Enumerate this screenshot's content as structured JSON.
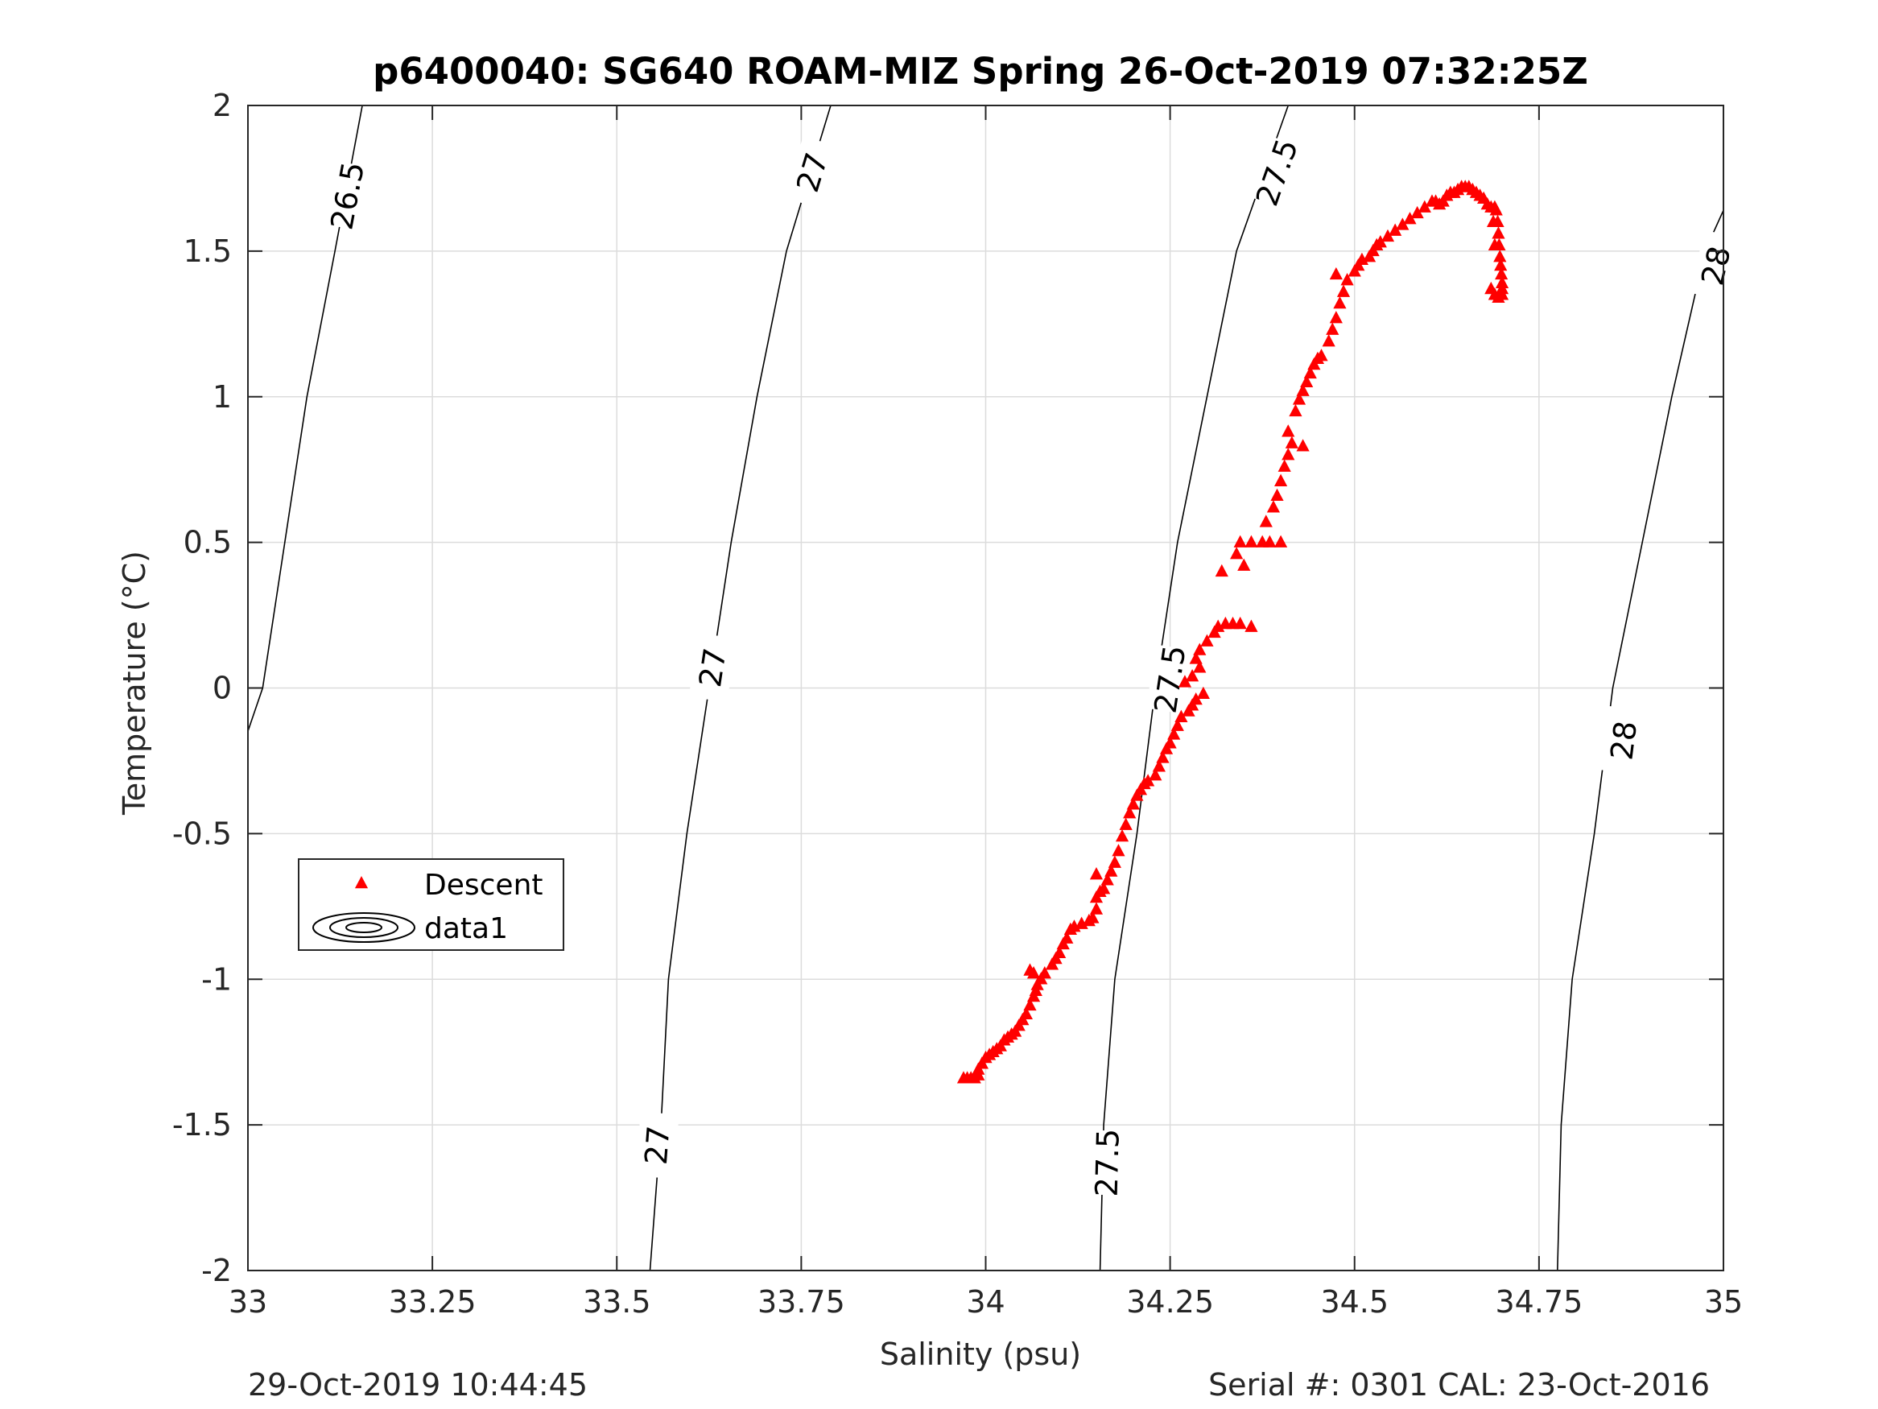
{
  "footer": {
    "timestamp": "29-Oct-2019 10:44:45",
    "serial_cal": "Serial #: 0301  CAL: 23-Oct-2016"
  },
  "chart_data": {
    "type": "scatter",
    "title": "p6400040: SG640 ROAM-MIZ Spring 26-Oct-2019 07:32:25Z",
    "xlabel": "Salinity (psu)",
    "ylabel": "Temperature (°C)",
    "xlim": [
      33,
      35
    ],
    "ylim": [
      -2,
      2
    ],
    "xticks": [
      33,
      33.25,
      33.5,
      33.75,
      34,
      34.25,
      34.5,
      34.75,
      35
    ],
    "xtick_labels": [
      "33",
      "33.25",
      "33.5",
      "33.75",
      "34",
      "34.25",
      "34.5",
      "34.75",
      "35"
    ],
    "yticks": [
      -2,
      -1.5,
      -1,
      -0.5,
      0,
      0.5,
      1,
      1.5,
      2
    ],
    "ytick_labels": [
      "-2",
      "-1.5",
      "-1",
      "-0.5",
      "0",
      "0.5",
      "1",
      "1.5",
      "2"
    ],
    "grid": true,
    "legend": {
      "placement": "lower-left",
      "entries": [
        {
          "label": "Descent",
          "marker": "triangle",
          "color": "#ff0000"
        },
        {
          "label": "data1",
          "marker": "contour",
          "color": "#000000"
        }
      ]
    },
    "contours": [
      {
        "label": "26.5",
        "points": [
          [
            32.997,
            -0.17
          ],
          [
            33.02,
            0.0
          ],
          [
            33.05,
            0.5
          ],
          [
            33.08,
            1.0
          ],
          [
            33.118,
            1.5
          ],
          [
            33.155,
            2.0
          ]
        ],
        "label_positions": [
          [
            33.135,
            1.69
          ]
        ]
      },
      {
        "label": "27",
        "points": [
          [
            33.545,
            -2.0
          ],
          [
            33.56,
            -1.5
          ],
          [
            33.57,
            -1.0
          ],
          [
            33.595,
            -0.5
          ],
          [
            33.625,
            0.0
          ],
          [
            33.655,
            0.5
          ],
          [
            33.69,
            1.0
          ],
          [
            33.73,
            1.5
          ],
          [
            33.79,
            2.0
          ]
        ],
        "label_positions": [
          [
            33.555,
            -1.57
          ],
          [
            33.63,
            0.07
          ],
          [
            33.765,
            1.77
          ]
        ]
      },
      {
        "label": "27.5",
        "points": [
          [
            34.155,
            -2.0
          ],
          [
            34.16,
            -1.5
          ],
          [
            34.175,
            -1.0
          ],
          [
            34.205,
            -0.5
          ],
          [
            34.23,
            0.0
          ],
          [
            34.26,
            0.5
          ],
          [
            34.3,
            1.0
          ],
          [
            34.34,
            1.5
          ],
          [
            34.41,
            2.0
          ]
        ],
        "label_positions": [
          [
            34.165,
            -1.63
          ],
          [
            34.25,
            0.03
          ],
          [
            34.395,
            1.77
          ]
        ]
      },
      {
        "label": "28",
        "points": [
          [
            34.775,
            -2.0
          ],
          [
            34.78,
            -1.5
          ],
          [
            34.795,
            -1.0
          ],
          [
            34.825,
            -0.5
          ],
          [
            34.85,
            0.0
          ],
          [
            34.89,
            0.5
          ],
          [
            34.93,
            1.0
          ],
          [
            34.975,
            1.5
          ],
          [
            35.0,
            1.64
          ]
        ],
        "label_positions": [
          [
            34.865,
            -0.18
          ],
          [
            34.99,
            1.45
          ]
        ]
      }
    ],
    "series": [
      {
        "name": "Descent",
        "marker": "triangle",
        "color": "#ff0000",
        "points": [
          [
            33.97,
            -1.34
          ],
          [
            33.975,
            -1.34
          ],
          [
            33.98,
            -1.34
          ],
          [
            33.985,
            -1.34
          ],
          [
            33.99,
            -1.33
          ],
          [
            33.99,
            -1.31
          ],
          [
            33.995,
            -1.29
          ],
          [
            34.0,
            -1.27
          ],
          [
            34.005,
            -1.26
          ],
          [
            34.01,
            -1.25
          ],
          [
            34.015,
            -1.24
          ],
          [
            34.02,
            -1.23
          ],
          [
            34.025,
            -1.21
          ],
          [
            34.03,
            -1.2
          ],
          [
            34.035,
            -1.19
          ],
          [
            34.04,
            -1.18
          ],
          [
            34.045,
            -1.16
          ],
          [
            34.05,
            -1.14
          ],
          [
            34.055,
            -1.12
          ],
          [
            34.06,
            -1.09
          ],
          [
            34.065,
            -1.06
          ],
          [
            34.068,
            -1.04
          ],
          [
            34.07,
            -1.02
          ],
          [
            34.075,
            -1.0
          ],
          [
            34.065,
            -0.98
          ],
          [
            34.06,
            -0.97
          ],
          [
            34.08,
            -0.98
          ],
          [
            34.09,
            -0.95
          ],
          [
            34.095,
            -0.93
          ],
          [
            34.1,
            -0.91
          ],
          [
            34.105,
            -0.88
          ],
          [
            34.11,
            -0.86
          ],
          [
            34.115,
            -0.83
          ],
          [
            34.12,
            -0.82
          ],
          [
            34.13,
            -0.81
          ],
          [
            34.14,
            -0.8
          ],
          [
            34.145,
            -0.79
          ],
          [
            34.15,
            -0.76
          ],
          [
            34.15,
            -0.72
          ],
          [
            34.155,
            -0.7
          ],
          [
            34.15,
            -0.64
          ],
          [
            34.16,
            -0.69
          ],
          [
            34.165,
            -0.66
          ],
          [
            34.17,
            -0.63
          ],
          [
            34.175,
            -0.6
          ],
          [
            34.18,
            -0.56
          ],
          [
            34.185,
            -0.51
          ],
          [
            34.19,
            -0.47
          ],
          [
            34.195,
            -0.43
          ],
          [
            34.2,
            -0.4
          ],
          [
            34.205,
            -0.37
          ],
          [
            34.21,
            -0.35
          ],
          [
            34.215,
            -0.33
          ],
          [
            34.22,
            -0.32
          ],
          [
            34.23,
            -0.3
          ],
          [
            34.235,
            -0.27
          ],
          [
            34.24,
            -0.24
          ],
          [
            34.245,
            -0.21
          ],
          [
            34.25,
            -0.19
          ],
          [
            34.255,
            -0.16
          ],
          [
            34.26,
            -0.13
          ],
          [
            34.265,
            -0.1
          ],
          [
            34.275,
            -0.08
          ],
          [
            34.28,
            -0.06
          ],
          [
            34.285,
            -0.04
          ],
          [
            34.295,
            -0.02
          ],
          [
            34.27,
            0.02
          ],
          [
            34.28,
            0.04
          ],
          [
            34.29,
            0.07
          ],
          [
            34.285,
            0.1
          ],
          [
            34.29,
            0.13
          ],
          [
            34.3,
            0.16
          ],
          [
            34.31,
            0.19
          ],
          [
            34.315,
            0.21
          ],
          [
            34.325,
            0.22
          ],
          [
            34.335,
            0.22
          ],
          [
            34.345,
            0.22
          ],
          [
            34.36,
            0.21
          ],
          [
            34.32,
            0.4
          ],
          [
            34.34,
            0.46
          ],
          [
            34.345,
            0.5
          ],
          [
            34.36,
            0.5
          ],
          [
            34.375,
            0.5
          ],
          [
            34.385,
            0.5
          ],
          [
            34.4,
            0.5
          ],
          [
            34.35,
            0.42
          ],
          [
            34.38,
            0.57
          ],
          [
            34.39,
            0.62
          ],
          [
            34.395,
            0.66
          ],
          [
            34.4,
            0.71
          ],
          [
            34.405,
            0.76
          ],
          [
            34.41,
            0.8
          ],
          [
            34.415,
            0.84
          ],
          [
            34.41,
            0.88
          ],
          [
            34.43,
            0.83
          ],
          [
            34.42,
            0.95
          ],
          [
            34.425,
            0.99
          ],
          [
            34.43,
            1.02
          ],
          [
            34.435,
            1.05
          ],
          [
            34.44,
            1.08
          ],
          [
            34.445,
            1.11
          ],
          [
            34.45,
            1.13
          ],
          [
            34.455,
            1.14
          ],
          [
            34.465,
            1.19
          ],
          [
            34.47,
            1.23
          ],
          [
            34.475,
            1.27
          ],
          [
            34.48,
            1.32
          ],
          [
            34.485,
            1.36
          ],
          [
            34.49,
            1.4
          ],
          [
            34.475,
            1.42
          ],
          [
            34.5,
            1.43
          ],
          [
            34.505,
            1.45
          ],
          [
            34.51,
            1.47
          ],
          [
            34.52,
            1.48
          ],
          [
            34.525,
            1.5
          ],
          [
            34.53,
            1.52
          ],
          [
            34.535,
            1.53
          ],
          [
            34.545,
            1.55
          ],
          [
            34.555,
            1.57
          ],
          [
            34.565,
            1.59
          ],
          [
            34.575,
            1.61
          ],
          [
            34.585,
            1.63
          ],
          [
            34.595,
            1.65
          ],
          [
            34.605,
            1.67
          ],
          [
            34.61,
            1.67
          ],
          [
            34.615,
            1.66
          ],
          [
            34.62,
            1.67
          ],
          [
            34.625,
            1.69
          ],
          [
            34.63,
            1.7
          ],
          [
            34.635,
            1.7
          ],
          [
            34.64,
            1.71
          ],
          [
            34.645,
            1.72
          ],
          [
            34.65,
            1.72
          ],
          [
            34.655,
            1.72
          ],
          [
            34.66,
            1.71
          ],
          [
            34.665,
            1.7
          ],
          [
            34.67,
            1.69
          ],
          [
            34.675,
            1.68
          ],
          [
            34.68,
            1.66
          ],
          [
            34.685,
            1.65
          ],
          [
            34.69,
            1.65
          ],
          [
            34.692,
            1.64
          ],
          [
            34.694,
            1.6
          ],
          [
            34.695,
            1.56
          ],
          [
            34.696,
            1.52
          ],
          [
            34.697,
            1.48
          ],
          [
            34.698,
            1.45
          ],
          [
            34.699,
            1.42
          ],
          [
            34.7,
            1.39
          ],
          [
            34.7,
            1.37
          ],
          [
            34.7,
            1.35
          ],
          [
            34.695,
            1.34
          ],
          [
            34.69,
            1.35
          ],
          [
            34.685,
            1.37
          ],
          [
            34.69,
            1.52
          ],
          [
            34.688,
            1.6
          ]
        ]
      }
    ]
  }
}
